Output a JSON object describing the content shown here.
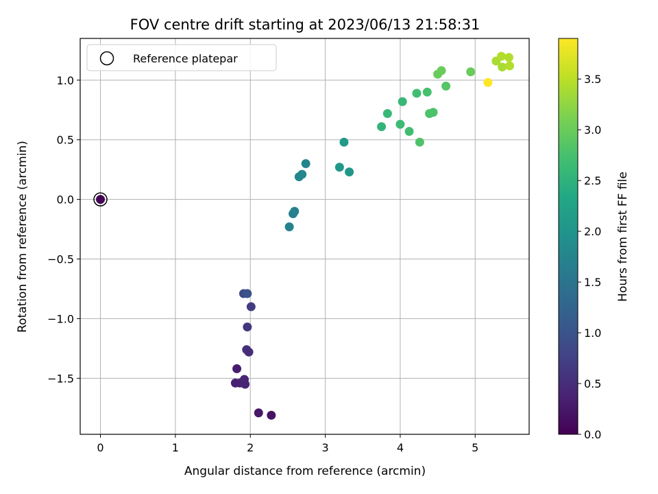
{
  "chart_data": {
    "type": "scatter",
    "title": "FOV centre drift starting at 2023/06/13 21:58:31",
    "xlabel": "Angular distance from reference (arcmin)",
    "ylabel": "Rotation from reference (arcmin)",
    "xlim": [
      -0.27,
      5.72
    ],
    "ylim": [
      -1.97,
      1.35
    ],
    "xticks": [
      0,
      1,
      2,
      3,
      4,
      5
    ],
    "yticks": [
      -1.5,
      -1.0,
      -0.5,
      0.0,
      0.5,
      1.0
    ],
    "xtick_labels": [
      "0",
      "1",
      "2",
      "3",
      "4",
      "5"
    ],
    "ytick_labels": [
      "−1.5",
      "−1.0",
      "−0.5",
      "0.0",
      "0.5",
      "1.0"
    ],
    "grid": true,
    "legend": {
      "label": "Reference platepar",
      "placement": "upper-left",
      "reference_point": [
        0,
        0
      ]
    },
    "colorbar": {
      "label": "Hours from first FF file",
      "range": [
        0.0,
        3.9
      ],
      "colormap": "viridis",
      "ticks": [
        0.0,
        0.5,
        1.0,
        1.5,
        2.0,
        2.5,
        3.0,
        3.5
      ],
      "tick_labels": [
        "0.0",
        "0.5",
        "1.0",
        "1.5",
        "2.0",
        "2.5",
        "3.0",
        "3.5"
      ]
    },
    "points": [
      {
        "x": 0.0,
        "y": 0.0,
        "c": 0.0
      },
      {
        "x": 2.28,
        "y": -1.81,
        "c": 0.2
      },
      {
        "x": 2.11,
        "y": -1.79,
        "c": 0.25
      },
      {
        "x": 1.8,
        "y": -1.54,
        "c": 0.35
      },
      {
        "x": 1.86,
        "y": -1.54,
        "c": 0.35
      },
      {
        "x": 1.93,
        "y": -1.55,
        "c": 0.4
      },
      {
        "x": 1.92,
        "y": -1.51,
        "c": 0.4
      },
      {
        "x": 1.82,
        "y": -1.42,
        "c": 0.3
      },
      {
        "x": 1.95,
        "y": -1.26,
        "c": 0.55
      },
      {
        "x": 1.98,
        "y": -1.28,
        "c": 0.5
      },
      {
        "x": 1.96,
        "y": -1.07,
        "c": 0.6
      },
      {
        "x": 2.01,
        "y": -0.9,
        "c": 0.7
      },
      {
        "x": 1.91,
        "y": -0.79,
        "c": 0.9
      },
      {
        "x": 1.96,
        "y": -0.79,
        "c": 1.0
      },
      {
        "x": 2.52,
        "y": -0.23,
        "c": 1.7
      },
      {
        "x": 2.57,
        "y": -0.12,
        "c": 1.65
      },
      {
        "x": 2.59,
        "y": -0.1,
        "c": 1.7
      },
      {
        "x": 2.65,
        "y": 0.19,
        "c": 1.8
      },
      {
        "x": 2.69,
        "y": 0.21,
        "c": 1.8
      },
      {
        "x": 2.74,
        "y": 0.3,
        "c": 1.75
      },
      {
        "x": 3.19,
        "y": 0.27,
        "c": 2.05
      },
      {
        "x": 3.25,
        "y": 0.48,
        "c": 2.1
      },
      {
        "x": 3.32,
        "y": 0.23,
        "c": 2.05
      },
      {
        "x": 3.75,
        "y": 0.61,
        "c": 2.55
      },
      {
        "x": 3.83,
        "y": 0.72,
        "c": 2.6
      },
      {
        "x": 4.0,
        "y": 0.63,
        "c": 2.65
      },
      {
        "x": 4.03,
        "y": 0.82,
        "c": 2.6
      },
      {
        "x": 4.12,
        "y": 0.57,
        "c": 2.7
      },
      {
        "x": 4.22,
        "y": 0.89,
        "c": 2.7
      },
      {
        "x": 4.26,
        "y": 0.48,
        "c": 2.8
      },
      {
        "x": 4.36,
        "y": 0.9,
        "c": 2.75
      },
      {
        "x": 4.39,
        "y": 0.72,
        "c": 2.8
      },
      {
        "x": 4.44,
        "y": 0.73,
        "c": 2.8
      },
      {
        "x": 4.5,
        "y": 1.05,
        "c": 3.0
      },
      {
        "x": 4.55,
        "y": 1.08,
        "c": 3.0
      },
      {
        "x": 4.61,
        "y": 0.95,
        "c": 2.85
      },
      {
        "x": 4.94,
        "y": 1.07,
        "c": 3.0
      },
      {
        "x": 5.17,
        "y": 0.98,
        "c": 3.9
      },
      {
        "x": 5.28,
        "y": 1.16,
        "c": 3.4
      },
      {
        "x": 5.35,
        "y": 1.2,
        "c": 3.45
      },
      {
        "x": 5.45,
        "y": 1.19,
        "c": 3.45
      },
      {
        "x": 5.36,
        "y": 1.11,
        "c": 3.4
      },
      {
        "x": 5.46,
        "y": 1.12,
        "c": 3.45
      }
    ]
  }
}
